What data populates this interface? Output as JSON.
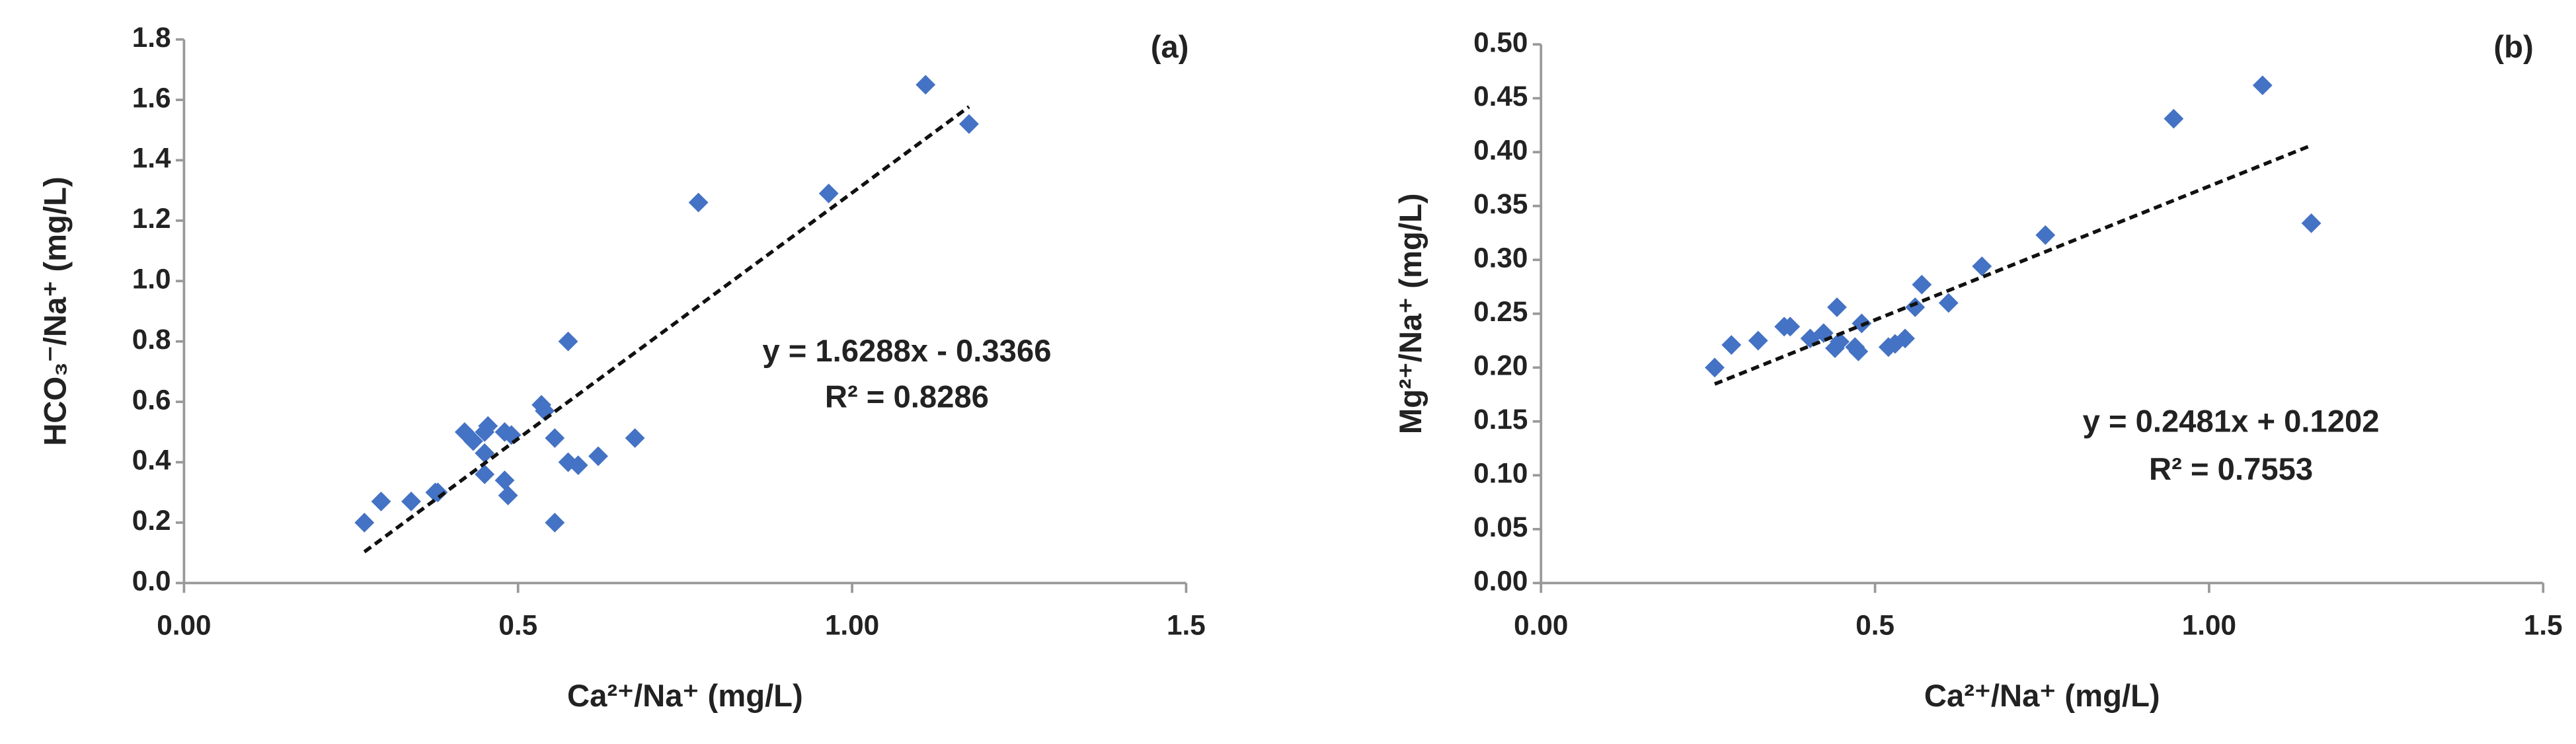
{
  "chart_data": [
    {
      "type": "scatter",
      "panel_label": "(a)",
      "x_label": "Ca²⁺/Na⁺ (mg/L)",
      "y_label": "HCO₃⁻/Na⁺ (mg/L)",
      "color": "#4472c4",
      "x": [
        0.27,
        0.295,
        0.34,
        0.376,
        0.38,
        0.42,
        0.433,
        0.45,
        0.455,
        0.45,
        0.45,
        0.48,
        0.49,
        0.48,
        0.485,
        0.535,
        0.54,
        0.555,
        0.555,
        0.575,
        0.575,
        0.59,
        0.62,
        0.675,
        0.77,
        0.965,
        1.11,
        1.175
      ],
      "values": [
        0.2,
        0.27,
        0.27,
        0.3,
        0.3,
        0.5,
        0.47,
        0.5,
        0.52,
        0.43,
        0.36,
        0.5,
        0.49,
        0.34,
        0.29,
        0.59,
        0.57,
        0.48,
        0.2,
        0.8,
        0.4,
        0.39,
        0.42,
        0.48,
        1.26,
        1.29,
        1.65,
        1.52
      ],
      "trendline": {
        "slope": 1.6288,
        "intercept": -0.3366,
        "equation": "y = 1.6288x - 0.3366",
        "r2": "R² = 0.8286"
      },
      "xlim": [
        0,
        1.5
      ],
      "xticks": [
        {
          "value": 0,
          "label": "0.00"
        },
        0.5,
        {
          "value": 1,
          "label": "1.00"
        },
        1.5
      ],
      "ylim": [
        0,
        1.8
      ],
      "yticks": [
        {
          "value": 0,
          "label": "0.0"
        },
        0.2,
        0.4,
        0.6,
        0.8,
        {
          "value": 1,
          "label": "1.0"
        },
        1.2,
        1.4,
        1.6,
        1.8
      ]
    },
    {
      "type": "scatter",
      "panel_label": "(b)",
      "x_label": "Ca²⁺/Na⁺ (mg/L)",
      "y_label": "Mg²⁺/Na⁺ (mg/L)",
      "color": "#4472c4",
      "x": [
        0.26,
        0.285,
        0.325,
        0.364,
        0.373,
        0.403,
        0.423,
        0.443,
        0.44,
        0.447,
        0.47,
        0.475,
        0.48,
        0.52,
        0.53,
        0.545,
        0.56,
        0.57,
        0.61,
        0.66,
        0.755,
        0.947,
        1.08,
        1.153
      ],
      "values": [
        0.2,
        0.221,
        0.225,
        0.238,
        0.238,
        0.227,
        0.232,
        0.256,
        0.218,
        0.224,
        0.219,
        0.215,
        0.241,
        0.219,
        0.222,
        0.227,
        0.256,
        0.277,
        0.26,
        0.294,
        0.323,
        0.431,
        0.462,
        0.334
      ],
      "trendline": {
        "slope": 0.2481,
        "intercept": 0.1202,
        "equation": "y = 0.2481x + 0.1202",
        "r2": "R² = 0.7553"
      },
      "xlim": [
        0,
        1.5
      ],
      "xticks": [
        {
          "value": 0,
          "label": "0.00"
        },
        0.5,
        {
          "value": 1,
          "label": "1.00"
        },
        1.5
      ],
      "ylim": [
        0,
        0.5
      ],
      "yticks": [
        {
          "value": 0,
          "label": "0.00"
        },
        0.05,
        {
          "value": 0.1,
          "label": "0.10"
        },
        0.15,
        {
          "value": 0.2,
          "label": "0.20"
        },
        0.25,
        {
          "value": 0.3,
          "label": "0.30"
        },
        0.35,
        {
          "value": 0.4,
          "label": "0.40"
        },
        0.45,
        {
          "value": 0.5,
          "label": "0.50"
        }
      ]
    }
  ]
}
